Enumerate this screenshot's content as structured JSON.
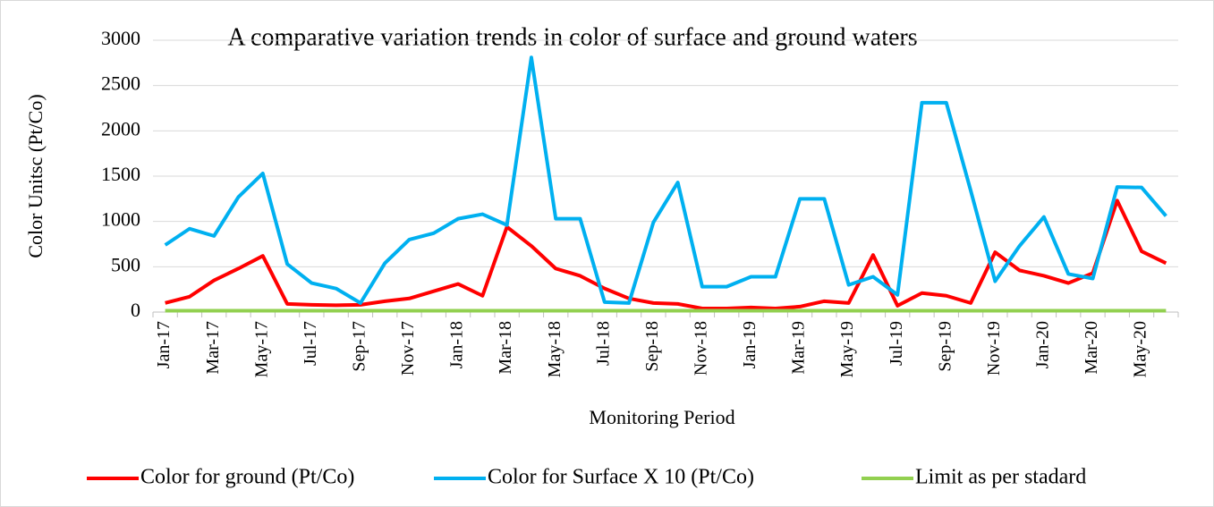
{
  "chart_data": {
    "type": "line",
    "title": "A comparative variation trends in color of surface and ground waters",
    "x_label": "Monitoring Period",
    "y_label": "Color Unitsc (Pt/Co)",
    "categories": [
      "Jan-17",
      null,
      "Mar-17",
      null,
      "May-17",
      null,
      "Jul-17",
      null,
      "Sep-17",
      null,
      "Nov-17",
      null,
      "Jan-18",
      null,
      "Mar-18",
      null,
      "May-18",
      null,
      "Jul-18",
      null,
      "Sep-18",
      null,
      "Nov-18",
      null,
      "Jan-19",
      null,
      "Mar-19",
      null,
      "May-19",
      null,
      "Jul-19",
      null,
      "Sep-19",
      null,
      "Nov-19",
      null,
      "Jan-20",
      null,
      "Mar-20",
      null,
      "May-20",
      null
    ],
    "series": [
      {
        "name": "Color for ground (Pt/Co)",
        "color": "#ff0000",
        "values": [
          100,
          170,
          350,
          480,
          620,
          90,
          80,
          75,
          80,
          120,
          150,
          230,
          310,
          180,
          940,
          730,
          480,
          400,
          260,
          150,
          100,
          90,
          40,
          40,
          50,
          40,
          60,
          120,
          100,
          630,
          70,
          210,
          180,
          100,
          660,
          460,
          400,
          320,
          430,
          1230,
          670,
          540
        ]
      },
      {
        "name": "Color for Surface X 10 (Pt/Co)",
        "color": "#00b0f0",
        "values": [
          740,
          920,
          840,
          1270,
          1530,
          530,
          320,
          260,
          100,
          540,
          800,
          870,
          1030,
          1080,
          960,
          2810,
          1030,
          1030,
          110,
          100,
          990,
          1430,
          280,
          280,
          390,
          390,
          1250,
          1250,
          300,
          390,
          190,
          2310,
          2310,
          1340,
          340,
          730,
          1050,
          420,
          370,
          1380,
          1375,
          1060
        ]
      },
      {
        "name": "Limit as per stadard",
        "color": "#92d050",
        "values": [
          15,
          15,
          15,
          15,
          15,
          15,
          15,
          15,
          15,
          15,
          15,
          15,
          15,
          15,
          15,
          15,
          15,
          15,
          15,
          15,
          15,
          15,
          15,
          15,
          15,
          15,
          15,
          15,
          15,
          15,
          15,
          15,
          15,
          15,
          15,
          15,
          15,
          15,
          15,
          15,
          15,
          15
        ]
      }
    ],
    "ylim": [
      0,
      3000
    ],
    "yticks": [
      0,
      500,
      1000,
      1500,
      2000,
      2500,
      3000
    ],
    "grid": true,
    "legend": "bottom"
  }
}
